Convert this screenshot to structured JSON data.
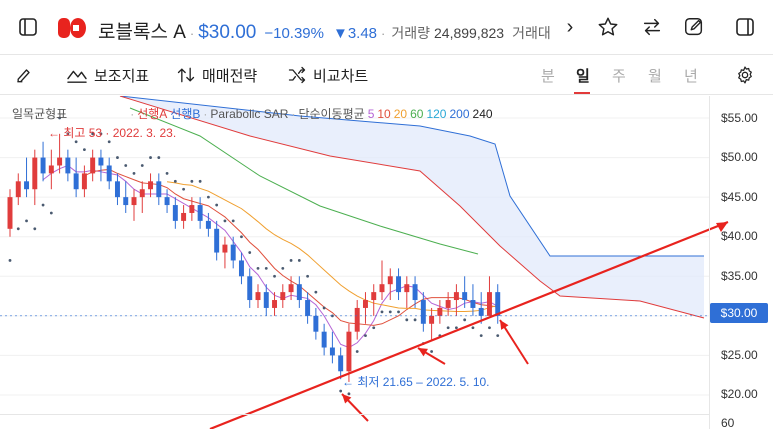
{
  "header": {
    "stock_name": "로블록스 A",
    "price": "$30.00",
    "change_pct": "−10.39%",
    "change_abs": "▼3.48",
    "volume_label": "거래량",
    "volume_value": "24,899,823",
    "amount_label": "거래대",
    "more_glyph": "›"
  },
  "toolbar": {
    "indicator_label": "보조지표",
    "strategy_label": "매매전략",
    "compare_label": "비교차트",
    "periods": [
      "분",
      "일",
      "주",
      "월",
      "년"
    ],
    "active_period": "일"
  },
  "legend": {
    "ichimoku": "일목균형표",
    "span_a": "선행A",
    "span_b": "선행B",
    "sep": "·",
    "psar": "Parabolic SAR",
    "ma_label": "단순이동평균",
    "ma_periods": [
      "5",
      "10",
      "20",
      "60",
      "120",
      "200",
      "240"
    ]
  },
  "colors": {
    "up": "#e03c3c",
    "down": "#2f6fd6",
    "ma5": "#b565d6",
    "ma10": "#e0503c",
    "ma20": "#f0a030",
    "ma60": "#4caf50",
    "ma120": "#29a8d6",
    "ma200": "#2f6fd6",
    "ma240": "#222222",
    "span_a": "#e03c3c",
    "span_b": "#2f6fd6",
    "psar": "#4a5a70",
    "trendline": "#e8231e"
  },
  "annotations": {
    "high_label": "← 최고 53 · 2022. 3. 23.",
    "low_label": "← 최저 21.65 – 2022. 5. 10."
  },
  "price_tag": "$30.00",
  "chart_data": {
    "type": "candlestick",
    "ylim": [
      19,
      57
    ],
    "y_ticks": [
      "$55.00",
      "$50.00",
      "$45.00",
      "$40.00",
      "$35.00",
      "$30.00",
      "$25.00",
      "$20.00"
    ],
    "y_tick_values": [
      55,
      50,
      45,
      40,
      35,
      30,
      25,
      20
    ],
    "volume_axis_tick": "60",
    "high": 53,
    "low": 21.65,
    "last": 30.0,
    "candles": [
      [
        41,
        46,
        40,
        45
      ],
      [
        45,
        48,
        44,
        47
      ],
      [
        47,
        50,
        45,
        46
      ],
      [
        46,
        51,
        44,
        50
      ],
      [
        50,
        52,
        47,
        48
      ],
      [
        48,
        51,
        46,
        49
      ],
      [
        49,
        53,
        48,
        50
      ],
      [
        50,
        51,
        47,
        48
      ],
      [
        48,
        50,
        45,
        46
      ],
      [
        46,
        49,
        45,
        48
      ],
      [
        48,
        51,
        47,
        50
      ],
      [
        50,
        51,
        47,
        49
      ],
      [
        49,
        50,
        46,
        47
      ],
      [
        47,
        48,
        44,
        45
      ],
      [
        45,
        47,
        43,
        44
      ],
      [
        44,
        46,
        42,
        45
      ],
      [
        45,
        47,
        43,
        46
      ],
      [
        46,
        48,
        45,
        47
      ],
      [
        47,
        48,
        44,
        45
      ],
      [
        45,
        46,
        43,
        44
      ],
      [
        44,
        45,
        41,
        42
      ],
      [
        42,
        44,
        41,
        43
      ],
      [
        43,
        45,
        42,
        44
      ],
      [
        44,
        45,
        41,
        42
      ],
      [
        42,
        43,
        40,
        41
      ],
      [
        41,
        42,
        37,
        38
      ],
      [
        38,
        40,
        36,
        39
      ],
      [
        39,
        40,
        36,
        37
      ],
      [
        37,
        38,
        34,
        35
      ],
      [
        35,
        36,
        31,
        32
      ],
      [
        32,
        34,
        31,
        33
      ],
      [
        33,
        34,
        30,
        31
      ],
      [
        31,
        33,
        30,
        32
      ],
      [
        32,
        34,
        31,
        33
      ],
      [
        33,
        35,
        32,
        34
      ],
      [
        34,
        35,
        31,
        32
      ],
      [
        32,
        33,
        29,
        30
      ],
      [
        30,
        31,
        27,
        28
      ],
      [
        28,
        29,
        25,
        26
      ],
      [
        26,
        28,
        24,
        25
      ],
      [
        25,
        26,
        22,
        23
      ],
      [
        23,
        29,
        21.65,
        28
      ],
      [
        28,
        32,
        27,
        31
      ],
      [
        31,
        33,
        29,
        32
      ],
      [
        32,
        34,
        30,
        33
      ],
      [
        33,
        37,
        32,
        34
      ],
      [
        34,
        36,
        32,
        35
      ],
      [
        35,
        36,
        32,
        33
      ],
      [
        33,
        35,
        31,
        34
      ],
      [
        34,
        35,
        31,
        32
      ],
      [
        32,
        33,
        28,
        29
      ],
      [
        29,
        31,
        27,
        30
      ],
      [
        30,
        32,
        29,
        31
      ],
      [
        31,
        33,
        30,
        32
      ],
      [
        32,
        34,
        30,
        33
      ],
      [
        33,
        35,
        31,
        32
      ],
      [
        32,
        34,
        30,
        31
      ],
      [
        31,
        33,
        29,
        30
      ],
      [
        30,
        35,
        30,
        33
      ],
      [
        33,
        34,
        29,
        30
      ]
    ],
    "trendline_from": [
      18,
      8
    ],
    "trendline_to": [
      68,
      41.5
    ]
  }
}
